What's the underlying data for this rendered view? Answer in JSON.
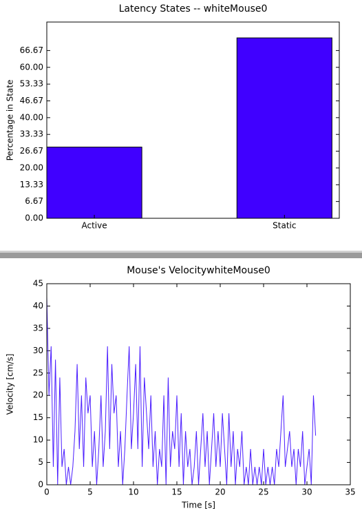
{
  "chart_data": [
    {
      "type": "bar",
      "title": "Latency States -- whiteMouse0",
      "y_label": "Percentage in State",
      "categories": [
        "Active",
        "Static"
      ],
      "values": [
        28.3,
        71.7
      ],
      "color": "#4000ff",
      "ylim": [
        0,
        78
      ],
      "yticks": [
        {
          "value": 0,
          "label": "0.00"
        },
        6.67,
        13.33,
        {
          "value": 20,
          "label": "20.00"
        },
        26.67,
        33.33,
        {
          "value": 40,
          "label": "40.00"
        },
        46.67,
        53.33,
        {
          "value": 60,
          "label": "60.00"
        },
        66.67
      ]
    },
    {
      "type": "line",
      "title": "Mouse's VelocitywhiteMouse0",
      "x_label": "Time [s]",
      "y_label": "Velocity [cm/s]",
      "color": "#4a1cff",
      "xlim": [
        0,
        35
      ],
      "ylim": [
        0,
        45
      ],
      "xticks": [
        0,
        5,
        10,
        15,
        20,
        25,
        30,
        35
      ],
      "yticks": [
        0,
        5,
        10,
        15,
        20,
        25,
        30,
        35,
        40,
        45
      ],
      "x": [
        0,
        0.25,
        0.5,
        0.75,
        1,
        1.25,
        1.5,
        1.75,
        2,
        2.25,
        2.5,
        2.75,
        3,
        3.25,
        3.5,
        3.75,
        4,
        4.25,
        4.5,
        4.75,
        5,
        5.25,
        5.5,
        5.75,
        6,
        6.25,
        6.5,
        6.75,
        7,
        7.25,
        7.5,
        7.75,
        8,
        8.25,
        8.5,
        8.75,
        9,
        9.25,
        9.5,
        9.75,
        10,
        10.25,
        10.5,
        10.75,
        11,
        11.25,
        11.5,
        11.75,
        12,
        12.25,
        12.5,
        12.75,
        13,
        13.25,
        13.5,
        13.75,
        14,
        14.25,
        14.5,
        14.75,
        15,
        15.25,
        15.5,
        15.75,
        16,
        16.25,
        16.5,
        16.75,
        17,
        17.25,
        17.5,
        17.75,
        18,
        18.25,
        18.5,
        18.75,
        19,
        19.25,
        19.5,
        19.75,
        20,
        20.25,
        20.5,
        20.75,
        21,
        21.25,
        21.5,
        21.75,
        22,
        22.25,
        22.5,
        22.75,
        23,
        23.25,
        23.5,
        23.75,
        24,
        24.25,
        24.5,
        24.75,
        25,
        25.25,
        25.5,
        25.75,
        26,
        26.25,
        26.5,
        26.75,
        27,
        27.25,
        27.5,
        27.75,
        28,
        28.25,
        28.5,
        28.75,
        29,
        29.25,
        29.5,
        29.75,
        30,
        30.25,
        30.5,
        30.75,
        31
      ],
      "values": [
        42,
        20,
        31,
        4,
        28,
        0,
        24,
        4,
        8,
        0,
        4,
        0,
        4,
        12,
        27,
        8,
        20,
        4,
        24,
        16,
        20,
        4,
        12,
        0,
        8,
        20,
        4,
        12,
        31,
        8,
        27,
        16,
        20,
        4,
        12,
        0,
        8,
        20,
        31,
        8,
        16,
        27,
        8,
        31,
        4,
        24,
        16,
        8,
        20,
        4,
        12,
        0,
        8,
        4,
        20,
        0,
        24,
        4,
        12,
        8,
        20,
        4,
        16,
        0,
        12,
        4,
        8,
        0,
        4,
        12,
        0,
        8,
        16,
        4,
        12,
        0,
        8,
        16,
        4,
        12,
        4,
        16,
        8,
        0,
        16,
        4,
        12,
        0,
        8,
        4,
        12,
        0,
        4,
        0,
        8,
        0,
        4,
        0,
        4,
        0,
        8,
        0,
        4,
        0,
        4,
        0,
        8,
        4,
        12,
        20,
        4,
        8,
        12,
        4,
        8,
        0,
        8,
        4,
        12,
        0,
        4,
        8,
        0,
        20,
        11
      ]
    }
  ]
}
